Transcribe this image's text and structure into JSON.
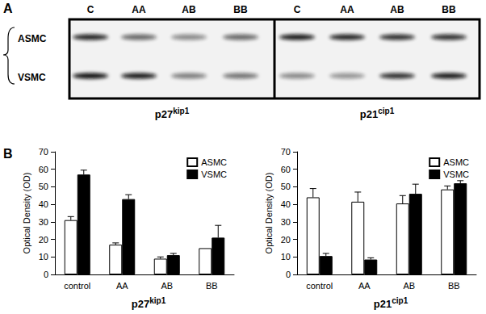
{
  "panel_labels": [
    "A",
    "B"
  ],
  "blots": {
    "cell_types": [
      "ASMC",
      "VSMC"
    ],
    "panels": [
      {
        "protein": "p27kip1",
        "lanes": [
          "C",
          "AA",
          "AB",
          "BB"
        ]
      },
      {
        "protein": "p21cip1",
        "lanes": [
          "C",
          "AA",
          "AB",
          "BB"
        ]
      }
    ]
  },
  "chart_data": [
    {
      "type": "bar",
      "title": "p27kip1",
      "ylabel": "Optical Density (OD)",
      "categories": [
        "control",
        "AA",
        "AB",
        "BB"
      ],
      "series": [
        {
          "name": "ASMC",
          "color": "#ffffff",
          "values": [
            31,
            17,
            9,
            15
          ],
          "errors": [
            2,
            1,
            1,
            0
          ]
        },
        {
          "name": "VSMC",
          "color": "#000000",
          "values": [
            57,
            43,
            11,
            21
          ],
          "errors": [
            2.5,
            2.5,
            1,
            7
          ]
        }
      ],
      "ylim": [
        0,
        70
      ],
      "yticks": [
        0,
        10,
        20,
        30,
        40,
        50,
        60,
        70
      ],
      "grid": false,
      "legend": "upper right"
    },
    {
      "type": "bar",
      "title": "p21cip1",
      "ylabel": "Optical Density (OD)",
      "categories": [
        "control",
        "AA",
        "AB",
        "BB"
      ],
      "series": [
        {
          "name": "ASMC",
          "color": "#ffffff",
          "values": [
            44,
            41.5,
            40.5,
            48.5
          ],
          "errors": [
            5,
            5.5,
            4.5,
            2
          ]
        },
        {
          "name": "VSMC",
          "color": "#000000",
          "values": [
            10.5,
            8.5,
            46,
            52
          ],
          "errors": [
            1.5,
            1,
            5.5,
            1.5
          ]
        }
      ],
      "ylim": [
        0,
        70
      ],
      "yticks": [
        0,
        10,
        20,
        30,
        40,
        50,
        60,
        70
      ],
      "grid": false,
      "legend": "upper right"
    }
  ]
}
